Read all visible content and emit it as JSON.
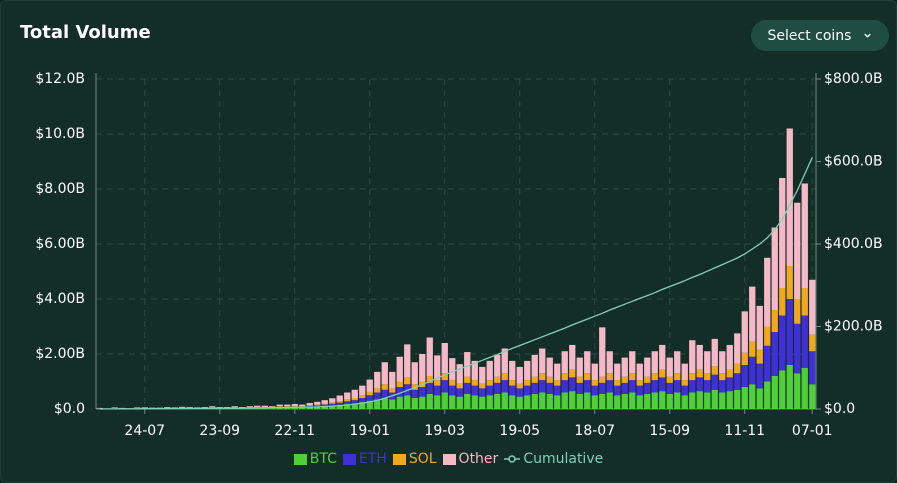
{
  "header": {
    "title": "Total Volume",
    "button": "Select coins"
  },
  "chart_data": {
    "type": "bar",
    "stacked": true,
    "grid": true,
    "legend": "bottom",
    "categories": [
      null,
      null,
      null,
      null,
      null,
      null,
      "24-07",
      null,
      null,
      null,
      null,
      null,
      null,
      null,
      null,
      null,
      "23-09",
      null,
      null,
      null,
      null,
      null,
      null,
      null,
      null,
      null,
      "22-11",
      null,
      null,
      null,
      null,
      null,
      null,
      null,
      null,
      null,
      "19-01",
      null,
      null,
      null,
      null,
      null,
      null,
      null,
      null,
      null,
      "19-03",
      null,
      null,
      null,
      null,
      null,
      null,
      null,
      null,
      null,
      "19-05",
      null,
      null,
      null,
      null,
      null,
      null,
      null,
      null,
      null,
      "18-07",
      null,
      null,
      null,
      null,
      null,
      null,
      null,
      null,
      null,
      "15-09",
      null,
      null,
      null,
      null,
      null,
      null,
      null,
      null,
      null,
      "11-11",
      null,
      null,
      null,
      null,
      null,
      null,
      null,
      null,
      "07-01"
    ],
    "ylim": [
      0,
      12
    ],
    "yticks": [
      {
        "value": 0,
        "label": "$0.0"
      },
      {
        "value": 2,
        "label": "$2.00B"
      },
      {
        "value": 4,
        "label": "$4.00B"
      },
      {
        "value": 6,
        "label": "$6.00B"
      },
      {
        "value": 8,
        "label": "$8.00B"
      },
      {
        "value": 10,
        "label": "$10.0B"
      },
      {
        "value": 12,
        "label": "$12.0B"
      }
    ],
    "y2lim": [
      0,
      800
    ],
    "y2ticks": [
      {
        "value": 0,
        "label": "$0.0"
      },
      {
        "value": 200,
        "label": "$200.0B"
      },
      {
        "value": 400,
        "label": "$400.0B"
      },
      {
        "value": 600,
        "label": "$600.0B"
      },
      {
        "value": 800,
        "label": "$800.0B"
      }
    ],
    "series": [
      {
        "name": "BTC",
        "color": "#4fd038",
        "values": [
          0.01,
          0.01,
          0.02,
          0.01,
          0.01,
          0.02,
          0.02,
          0.01,
          0.02,
          0.02,
          0.02,
          0.03,
          0.02,
          0.02,
          0.03,
          0.03,
          0.02,
          0.03,
          0.03,
          0.02,
          0.03,
          0.04,
          0.04,
          0.03,
          0.05,
          0.05,
          0.06,
          0.05,
          0.07,
          0.08,
          0.1,
          0.12,
          0.15,
          0.18,
          0.2,
          0.25,
          0.3,
          0.35,
          0.4,
          0.35,
          0.45,
          0.5,
          0.4,
          0.45,
          0.55,
          0.5,
          0.6,
          0.5,
          0.45,
          0.55,
          0.5,
          0.45,
          0.5,
          0.55,
          0.6,
          0.5,
          0.45,
          0.5,
          0.55,
          0.6,
          0.55,
          0.5,
          0.6,
          0.65,
          0.55,
          0.6,
          0.5,
          0.55,
          0.6,
          0.5,
          0.55,
          0.6,
          0.5,
          0.55,
          0.6,
          0.65,
          0.55,
          0.6,
          0.5,
          0.6,
          0.65,
          0.6,
          0.7,
          0.6,
          0.65,
          0.7,
          0.8,
          0.9,
          0.75,
          1.0,
          1.2,
          1.4,
          1.6,
          1.3,
          1.5,
          0.9
        ]
      },
      {
        "name": "ETH",
        "color": "#3f2fd6",
        "values": [
          0.01,
          0,
          0.01,
          0.01,
          0,
          0.01,
          0.01,
          0.01,
          0.01,
          0.01,
          0.01,
          0.01,
          0.01,
          0.01,
          0.01,
          0.02,
          0.01,
          0.01,
          0.02,
          0.01,
          0.02,
          0.02,
          0.02,
          0.02,
          0.03,
          0.03,
          0.03,
          0.03,
          0.04,
          0.05,
          0.06,
          0.07,
          0.08,
          0.1,
          0.12,
          0.15,
          0.2,
          0.25,
          0.3,
          0.25,
          0.35,
          0.4,
          0.3,
          0.35,
          0.4,
          0.35,
          0.45,
          0.35,
          0.3,
          0.4,
          0.35,
          0.3,
          0.35,
          0.4,
          0.45,
          0.35,
          0.3,
          0.35,
          0.4,
          0.45,
          0.4,
          0.35,
          0.45,
          0.5,
          0.4,
          0.45,
          0.35,
          0.4,
          0.45,
          0.35,
          0.4,
          0.45,
          0.35,
          0.4,
          0.45,
          0.5,
          0.4,
          0.45,
          0.35,
          0.45,
          0.5,
          0.45,
          0.55,
          0.45,
          0.5,
          0.6,
          0.8,
          1.0,
          0.9,
          1.3,
          1.6,
          2.0,
          2.4,
          1.8,
          1.9,
          1.2
        ]
      },
      {
        "name": "SOL",
        "color": "#f2a81d",
        "values": [
          0,
          0,
          0.01,
          0,
          0,
          0.01,
          0,
          0.01,
          0,
          0.01,
          0.01,
          0,
          0.01,
          0.01,
          0,
          0.01,
          0.01,
          0,
          0.01,
          0.01,
          0.01,
          0.01,
          0.01,
          0.01,
          0.02,
          0.02,
          0.02,
          0.02,
          0.03,
          0.03,
          0.04,
          0.05,
          0.06,
          0.07,
          0.08,
          0.1,
          0.12,
          0.15,
          0.2,
          0.15,
          0.2,
          0.25,
          0.2,
          0.2,
          0.25,
          0.2,
          0.25,
          0.2,
          0.18,
          0.22,
          0.2,
          0.18,
          0.2,
          0.22,
          0.25,
          0.2,
          0.18,
          0.2,
          0.22,
          0.25,
          0.22,
          0.2,
          0.25,
          0.28,
          0.22,
          0.25,
          0.2,
          0.22,
          0.25,
          0.2,
          0.22,
          0.25,
          0.2,
          0.22,
          0.25,
          0.28,
          0.22,
          0.25,
          0.2,
          0.25,
          0.28,
          0.25,
          0.3,
          0.25,
          0.28,
          0.35,
          0.45,
          0.55,
          0.5,
          0.7,
          0.8,
          1.0,
          1.2,
          0.9,
          1.0,
          0.6
        ]
      },
      {
        "name": "Other",
        "color": "#f5b8c6",
        "values": [
          0.02,
          0.01,
          0.02,
          0.02,
          0.01,
          0.02,
          0.03,
          0.02,
          0.02,
          0.03,
          0.02,
          0.04,
          0.03,
          0.02,
          0.03,
          0.04,
          0.03,
          0.03,
          0.04,
          0.03,
          0.04,
          0.05,
          0.05,
          0.04,
          0.06,
          0.06,
          0.07,
          0.06,
          0.08,
          0.1,
          0.12,
          0.15,
          0.2,
          0.25,
          0.3,
          0.35,
          0.45,
          0.6,
          0.8,
          0.6,
          0.9,
          1.2,
          0.8,
          1.0,
          1.4,
          0.9,
          1.1,
          0.8,
          0.7,
          0.9,
          0.7,
          0.6,
          0.7,
          0.8,
          0.9,
          0.7,
          0.6,
          0.7,
          0.8,
          0.9,
          0.7,
          0.6,
          0.8,
          0.9,
          0.7,
          0.8,
          0.6,
          1.8,
          0.8,
          0.6,
          0.7,
          0.8,
          0.6,
          0.7,
          0.8,
          0.9,
          0.7,
          0.8,
          0.6,
          1.2,
          0.9,
          0.8,
          1.0,
          0.8,
          0.9,
          1.1,
          1.5,
          2.0,
          1.6,
          2.5,
          3.0,
          4.0,
          5.0,
          3.5,
          3.8,
          2.0
        ]
      },
      {
        "name": "Cumulative",
        "color": "#7fd1b5",
        "axis": "y2",
        "type": "line",
        "values": [
          0.1,
          0.2,
          0.3,
          0.4,
          0.5,
          0.6,
          0.7,
          0.8,
          0.9,
          1.0,
          1.1,
          1.2,
          1.4,
          1.5,
          1.6,
          1.8,
          1.9,
          2.0,
          2.2,
          2.3,
          2.5,
          2.7,
          2.9,
          3.1,
          3.4,
          3.7,
          4.0,
          4.3,
          4.7,
          5.2,
          6,
          7,
          8,
          10,
          12,
          14,
          17,
          21,
          26,
          32,
          38,
          45,
          52,
          59,
          67,
          75,
          83,
          90,
          97,
          104,
          111,
          118,
          125,
          132,
          140,
          147,
          154,
          161,
          168,
          175,
          182,
          189,
          196,
          204,
          211,
          218,
          225,
          232,
          240,
          247,
          254,
          261,
          268,
          275,
          282,
          290,
          297,
          304,
          311,
          319,
          326,
          334,
          342,
          350,
          358,
          366,
          376,
          388,
          400,
          415,
          435,
          460,
          495,
          530,
          570,
          610
        ]
      }
    ]
  }
}
